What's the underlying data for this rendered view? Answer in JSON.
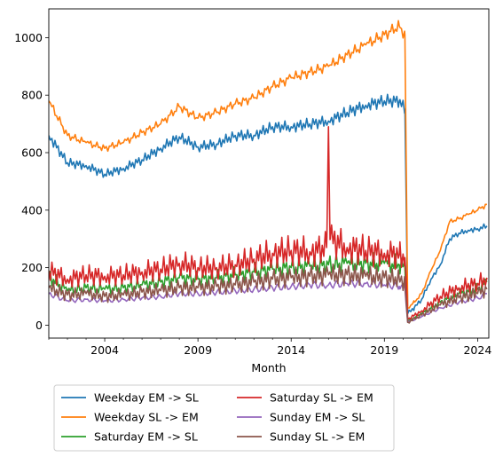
{
  "chart_data": {
    "type": "line",
    "title": "",
    "xlabel": "Month",
    "ylabel": "",
    "x_ticks": [
      "2004",
      "2009",
      "2014",
      "2019",
      "2024"
    ],
    "y_ticks": [
      "0",
      "200",
      "400",
      "600",
      "800",
      "1000"
    ],
    "xlim": [
      2001.0,
      2024.6
    ],
    "ylim": [
      -45,
      1100
    ],
    "grid": false,
    "legend_position": "below-center",
    "series": [
      {
        "name": "Weekday EM -> SL",
        "color": "#1f77b4",
        "points": [
          [
            2001.0,
            660
          ],
          [
            2002.0,
            565
          ],
          [
            2003.0,
            555
          ],
          [
            2004.0,
            525
          ],
          [
            2005.0,
            545
          ],
          [
            2006.0,
            575
          ],
          [
            2007.0,
            615
          ],
          [
            2008.0,
            655
          ],
          [
            2009.0,
            620
          ],
          [
            2010.0,
            630
          ],
          [
            2011.0,
            660
          ],
          [
            2012.0,
            660
          ],
          [
            2013.0,
            690
          ],
          [
            2014.0,
            690
          ],
          [
            2015.0,
            700
          ],
          [
            2016.0,
            710
          ],
          [
            2017.0,
            740
          ],
          [
            2018.0,
            765
          ],
          [
            2019.0,
            780
          ],
          [
            2019.8,
            780
          ],
          [
            2020.1,
            750
          ],
          [
            2020.25,
            40
          ],
          [
            2020.6,
            60
          ],
          [
            2021.0,
            90
          ],
          [
            2021.5,
            160
          ],
          [
            2022.0,
            210
          ],
          [
            2022.5,
            300
          ],
          [
            2023.0,
            320
          ],
          [
            2023.5,
            330
          ],
          [
            2024.0,
            335
          ],
          [
            2024.5,
            345
          ]
        ]
      },
      {
        "name": "Weekday SL -> EM",
        "color": "#ff7f0e",
        "points": [
          [
            2001.0,
            780
          ],
          [
            2002.0,
            660
          ],
          [
            2003.0,
            635
          ],
          [
            2004.0,
            615
          ],
          [
            2005.0,
            635
          ],
          [
            2006.0,
            670
          ],
          [
            2007.0,
            700
          ],
          [
            2008.0,
            760
          ],
          [
            2009.0,
            720
          ],
          [
            2010.0,
            740
          ],
          [
            2011.0,
            770
          ],
          [
            2012.0,
            790
          ],
          [
            2013.0,
            830
          ],
          [
            2014.0,
            860
          ],
          [
            2015.0,
            880
          ],
          [
            2016.0,
            900
          ],
          [
            2017.0,
            940
          ],
          [
            2018.0,
            975
          ],
          [
            2019.0,
            1010
          ],
          [
            2019.8,
            1040
          ],
          [
            2020.1,
            1010
          ],
          [
            2020.25,
            60
          ],
          [
            2020.6,
            80
          ],
          [
            2021.0,
            110
          ],
          [
            2021.5,
            190
          ],
          [
            2022.0,
            260
          ],
          [
            2022.5,
            360
          ],
          [
            2023.0,
            370
          ],
          [
            2023.5,
            385
          ],
          [
            2024.0,
            400
          ],
          [
            2024.5,
            420
          ]
        ]
      },
      {
        "name": "Saturday EM -> SL",
        "color": "#2ca02c",
        "points": [
          [
            2001.0,
            170
          ],
          [
            2002.0,
            120
          ],
          [
            2003.0,
            130
          ],
          [
            2004.0,
            125
          ],
          [
            2005.0,
            130
          ],
          [
            2006.0,
            140
          ],
          [
            2007.0,
            150
          ],
          [
            2008.0,
            165
          ],
          [
            2009.0,
            160
          ],
          [
            2010.0,
            165
          ],
          [
            2011.0,
            175
          ],
          [
            2012.0,
            185
          ],
          [
            2013.0,
            195
          ],
          [
            2014.0,
            200
          ],
          [
            2015.0,
            205
          ],
          [
            2016.0,
            210
          ],
          [
            2017.0,
            215
          ],
          [
            2018.0,
            215
          ],
          [
            2019.0,
            215
          ],
          [
            2019.8,
            210
          ],
          [
            2020.1,
            200
          ],
          [
            2020.25,
            15
          ],
          [
            2021.0,
            40
          ],
          [
            2022.0,
            80
          ],
          [
            2023.0,
            110
          ],
          [
            2024.0,
            125
          ],
          [
            2024.5,
            150
          ]
        ]
      },
      {
        "name": "Saturday SL -> EM",
        "color": "#d62728",
        "points": [
          [
            2001.0,
            190
          ],
          [
            2002.0,
            160
          ],
          [
            2003.0,
            175
          ],
          [
            2004.0,
            170
          ],
          [
            2005.0,
            175
          ],
          [
            2006.0,
            185
          ],
          [
            2007.0,
            195
          ],
          [
            2008.0,
            215
          ],
          [
            2009.0,
            200
          ],
          [
            2010.0,
            200
          ],
          [
            2011.0,
            210
          ],
          [
            2012.0,
            230
          ],
          [
            2013.0,
            250
          ],
          [
            2014.0,
            260
          ],
          [
            2015.0,
            255
          ],
          [
            2015.9,
            270
          ],
          [
            2016.0,
            690
          ],
          [
            2016.1,
            300
          ],
          [
            2017.0,
            270
          ],
          [
            2018.0,
            260
          ],
          [
            2019.0,
            250
          ],
          [
            2019.8,
            245
          ],
          [
            2020.1,
            235
          ],
          [
            2020.25,
            20
          ],
          [
            2021.0,
            50
          ],
          [
            2022.0,
            100
          ],
          [
            2023.0,
            130
          ],
          [
            2024.0,
            145
          ],
          [
            2024.5,
            165
          ]
        ]
      },
      {
        "name": "Sunday EM -> SL",
        "color": "#9467bd",
        "points": [
          [
            2001.0,
            110
          ],
          [
            2002.0,
            85
          ],
          [
            2003.0,
            90
          ],
          [
            2004.0,
            85
          ],
          [
            2005.0,
            90
          ],
          [
            2006.0,
            95
          ],
          [
            2007.0,
            100
          ],
          [
            2008.0,
            110
          ],
          [
            2009.0,
            110
          ],
          [
            2010.0,
            115
          ],
          [
            2011.0,
            120
          ],
          [
            2012.0,
            125
          ],
          [
            2013.0,
            130
          ],
          [
            2014.0,
            135
          ],
          [
            2015.0,
            140
          ],
          [
            2016.0,
            140
          ],
          [
            2017.0,
            145
          ],
          [
            2018.0,
            145
          ],
          [
            2019.0,
            140
          ],
          [
            2019.8,
            135
          ],
          [
            2020.1,
            130
          ],
          [
            2020.25,
            10
          ],
          [
            2021.0,
            30
          ],
          [
            2022.0,
            60
          ],
          [
            2023.0,
            80
          ],
          [
            2024.0,
            95
          ],
          [
            2024.5,
            110
          ]
        ]
      },
      {
        "name": "Sunday SL -> EM",
        "color": "#8c564b",
        "points": [
          [
            2001.0,
            130
          ],
          [
            2002.0,
            105
          ],
          [
            2003.0,
            110
          ],
          [
            2004.0,
            100
          ],
          [
            2005.0,
            105
          ],
          [
            2006.0,
            115
          ],
          [
            2007.0,
            120
          ],
          [
            2008.0,
            130
          ],
          [
            2009.0,
            130
          ],
          [
            2010.0,
            135
          ],
          [
            2011.0,
            140
          ],
          [
            2012.0,
            150
          ],
          [
            2013.0,
            160
          ],
          [
            2014.0,
            165
          ],
          [
            2015.0,
            170
          ],
          [
            2016.0,
            175
          ],
          [
            2017.0,
            175
          ],
          [
            2018.0,
            170
          ],
          [
            2019.0,
            165
          ],
          [
            2019.8,
            160
          ],
          [
            2020.1,
            150
          ],
          [
            2020.25,
            10
          ],
          [
            2021.0,
            35
          ],
          [
            2022.0,
            70
          ],
          [
            2023.0,
            95
          ],
          [
            2024.0,
            110
          ],
          [
            2024.5,
            125
          ]
        ]
      }
    ]
  }
}
